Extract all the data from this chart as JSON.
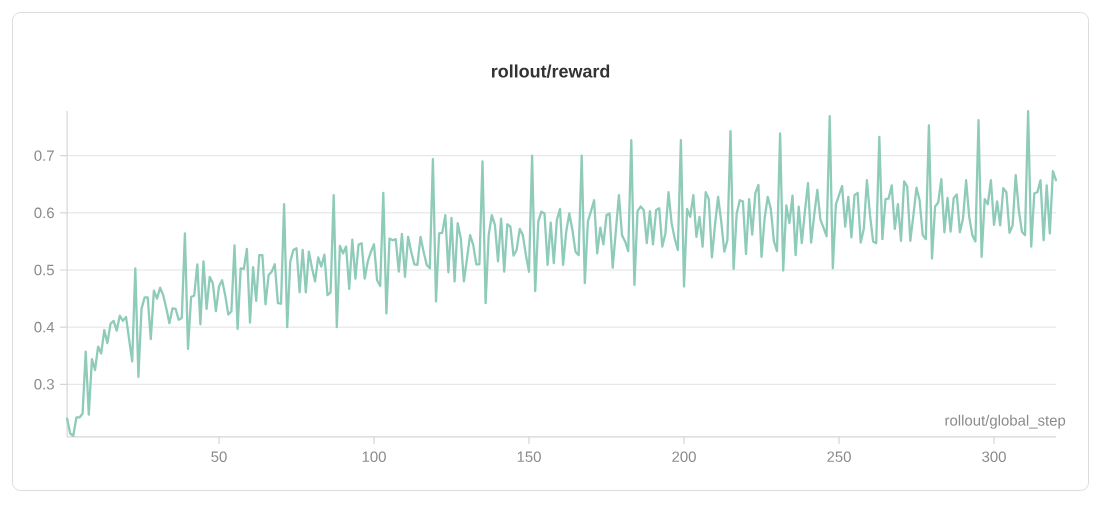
{
  "chart_data": {
    "type": "line",
    "title": "rollout/reward",
    "xlabel": "rollout/global_step",
    "x": [
      1,
      2,
      3,
      4,
      5,
      6,
      7,
      8,
      9,
      10,
      11,
      12,
      13,
      14,
      15,
      16,
      17,
      18,
      19,
      20,
      22,
      23,
      24,
      25,
      26,
      27,
      28,
      29,
      30,
      31,
      32,
      33,
      34,
      35,
      36,
      37,
      38,
      39,
      40,
      41,
      42,
      43,
      44,
      45,
      46,
      47,
      48,
      49,
      50,
      51,
      52,
      53,
      54,
      55,
      56,
      57,
      58,
      59,
      60,
      61,
      62,
      63,
      64,
      65,
      66,
      67,
      68,
      69,
      70,
      71,
      72,
      73,
      74,
      75,
      76,
      77,
      78,
      79,
      80,
      81,
      82,
      83,
      84,
      85,
      86,
      87,
      88,
      89,
      90,
      91,
      92,
      93,
      94,
      95,
      96,
      97,
      98,
      99,
      100,
      101,
      102,
      103,
      104,
      105,
      106,
      107,
      108,
      109,
      110,
      111,
      112,
      113,
      114,
      115,
      116,
      117,
      118,
      119,
      120,
      121,
      122,
      123,
      124,
      125,
      126,
      127,
      128,
      129,
      130,
      131,
      132,
      133,
      134,
      135,
      136,
      137,
      138,
      139,
      140,
      141,
      142,
      143,
      144,
      145,
      146,
      147,
      148,
      149,
      150,
      151,
      152,
      153,
      154,
      155,
      156,
      157,
      158,
      159,
      160,
      161,
      162,
      163,
      164,
      165,
      166,
      167,
      168,
      169,
      170,
      171,
      172,
      173,
      174,
      175,
      176,
      177,
      179,
      180,
      181,
      182,
      183,
      184,
      185,
      186,
      187,
      188,
      189,
      190,
      191,
      192,
      193,
      194,
      195,
      196,
      197,
      198,
      199,
      200,
      201,
      202,
      203,
      204,
      205,
      206,
      207,
      208,
      209,
      210,
      211,
      212,
      213,
      214,
      215,
      216,
      217,
      218,
      219,
      220,
      221,
      222,
      223,
      224,
      225,
      226,
      227,
      228,
      229,
      230,
      231,
      232,
      233,
      234,
      235,
      236,
      237,
      238,
      239,
      240,
      241,
      242,
      243,
      244,
      245,
      246,
      247,
      248,
      249,
      250,
      251,
      252,
      253,
      254,
      255,
      256,
      257,
      258,
      259,
      260,
      261,
      262,
      263,
      264,
      265,
      266,
      267,
      268,
      269,
      270,
      271,
      272,
      273,
      274,
      275,
      276,
      277,
      278,
      279,
      280,
      281,
      282,
      283,
      284,
      285,
      286,
      287,
      288,
      289,
      290,
      291,
      292,
      293,
      294,
      295,
      296,
      297,
      298,
      299,
      300,
      301,
      302,
      303,
      304,
      305,
      306,
      307,
      308,
      309,
      310,
      311,
      312,
      313,
      314,
      315,
      316,
      317,
      318,
      319,
      320
    ],
    "values": [
      0.24,
      0.214,
      0.21,
      0.242,
      0.242,
      0.249,
      0.357,
      0.247,
      0.344,
      0.325,
      0.366,
      0.354,
      0.395,
      0.372,
      0.406,
      0.411,
      0.394,
      0.42,
      0.411,
      0.418,
      0.34,
      0.503,
      0.313,
      0.432,
      0.452,
      0.452,
      0.379,
      0.464,
      0.45,
      0.469,
      0.456,
      0.433,
      0.407,
      0.433,
      0.432,
      0.413,
      0.416,
      0.564,
      0.362,
      0.453,
      0.455,
      0.51,
      0.405,
      0.515,
      0.432,
      0.488,
      0.477,
      0.428,
      0.471,
      0.482,
      0.456,
      0.422,
      0.428,
      0.543,
      0.397,
      0.503,
      0.502,
      0.537,
      0.408,
      0.505,
      0.446,
      0.526,
      0.526,
      0.44,
      0.491,
      0.497,
      0.51,
      0.442,
      0.441,
      0.615,
      0.4,
      0.515,
      0.535,
      0.538,
      0.461,
      0.535,
      0.461,
      0.532,
      0.503,
      0.48,
      0.522,
      0.506,
      0.527,
      0.456,
      0.461,
      0.631,
      0.4,
      0.542,
      0.529,
      0.541,
      0.467,
      0.553,
      0.485,
      0.544,
      0.547,
      0.485,
      0.515,
      0.532,
      0.545,
      0.482,
      0.472,
      0.635,
      0.424,
      0.555,
      0.552,
      0.554,
      0.497,
      0.563,
      0.488,
      0.558,
      0.532,
      0.51,
      0.509,
      0.558,
      0.532,
      0.509,
      0.503,
      0.694,
      0.445,
      0.564,
      0.565,
      0.596,
      0.496,
      0.591,
      0.48,
      0.582,
      0.555,
      0.48,
      0.52,
      0.561,
      0.544,
      0.51,
      0.51,
      0.69,
      0.442,
      0.561,
      0.596,
      0.579,
      0.515,
      0.59,
      0.497,
      0.58,
      0.576,
      0.525,
      0.535,
      0.572,
      0.561,
      0.526,
      0.497,
      0.7,
      0.463,
      0.585,
      0.602,
      0.599,
      0.509,
      0.583,
      0.512,
      0.588,
      0.607,
      0.509,
      0.567,
      0.599,
      0.57,
      0.532,
      0.526,
      0.7,
      0.477,
      0.585,
      0.603,
      0.622,
      0.529,
      0.574,
      0.545,
      0.596,
      0.599,
      0.504,
      0.631,
      0.561,
      0.55,
      0.533,
      0.727,
      0.474,
      0.603,
      0.611,
      0.605,
      0.547,
      0.603,
      0.545,
      0.605,
      0.608,
      0.541,
      0.564,
      0.636,
      0.582,
      0.555,
      0.535,
      0.727,
      0.471,
      0.607,
      0.593,
      0.631,
      0.558,
      0.593,
      0.541,
      0.636,
      0.624,
      0.522,
      0.579,
      0.628,
      0.585,
      0.532,
      0.552,
      0.743,
      0.502,
      0.599,
      0.622,
      0.62,
      0.528,
      0.624,
      0.562,
      0.634,
      0.649,
      0.523,
      0.59,
      0.628,
      0.607,
      0.55,
      0.533,
      0.739,
      0.499,
      0.613,
      0.582,
      0.63,
      0.526,
      0.611,
      0.547,
      0.603,
      0.652,
      0.548,
      0.596,
      0.64,
      0.588,
      0.574,
      0.559,
      0.769,
      0.503,
      0.615,
      0.631,
      0.647,
      0.576,
      0.628,
      0.557,
      0.631,
      0.635,
      0.548,
      0.572,
      0.657,
      0.596,
      0.55,
      0.547,
      0.733,
      0.554,
      0.624,
      0.625,
      0.648,
      0.572,
      0.615,
      0.551,
      0.655,
      0.646,
      0.551,
      0.596,
      0.644,
      0.622,
      0.561,
      0.554,
      0.753,
      0.52,
      0.611,
      0.618,
      0.659,
      0.566,
      0.626,
      0.567,
      0.626,
      0.632,
      0.566,
      0.59,
      0.657,
      0.593,
      0.561,
      0.55,
      0.762,
      0.523,
      0.624,
      0.615,
      0.657,
      0.579,
      0.62,
      0.578,
      0.643,
      0.636,
      0.565,
      0.578,
      0.666,
      0.605,
      0.567,
      0.561,
      0.778,
      0.541,
      0.634,
      0.636,
      0.657,
      0.552,
      0.648,
      0.564,
      0.673,
      0.657
    ],
    "color": "#8fcbb9",
    "xlim": [
      1,
      320
    ],
    "ylim": [
      0.208,
      0.778
    ],
    "xticks": [
      50,
      100,
      150,
      200,
      250,
      300
    ],
    "yticks": [
      0.3,
      0.4,
      0.5,
      0.6,
      0.7
    ],
    "grid": "y"
  }
}
